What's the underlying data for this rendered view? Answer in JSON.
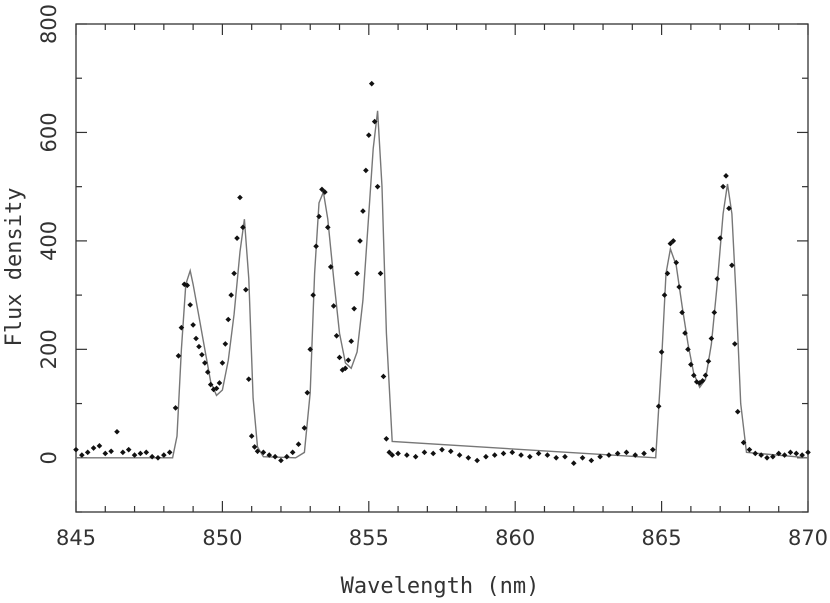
{
  "chart_data": {
    "type": "scatter",
    "title": "",
    "xlabel": "Wavelength (nm)",
    "ylabel": "Flux density",
    "xlim": [
      845,
      870
    ],
    "ylim": [
      -100,
      800
    ],
    "xticks": [
      845,
      850,
      855,
      860,
      865,
      870
    ],
    "yticks": [
      0,
      200,
      400,
      600,
      800
    ],
    "grid": false,
    "legend": "none",
    "colors": {
      "points": "#111111",
      "model": "#777777",
      "axes": "#333333"
    },
    "series": [
      {
        "kind": "points",
        "x": [
          845.0,
          845.2,
          845.4,
          845.6,
          845.8,
          846.0,
          846.2,
          846.4,
          846.6,
          846.8,
          847.0,
          847.2,
          847.4,
          847.6,
          847.8,
          848.0,
          848.2,
          848.4,
          848.5,
          848.6,
          848.7,
          848.8,
          848.9,
          849.0,
          849.1,
          849.2,
          849.3,
          849.4,
          849.5,
          849.6,
          849.7,
          849.8,
          849.9,
          850.0,
          850.1,
          850.2,
          850.3,
          850.4,
          850.5,
          850.6,
          850.7,
          850.8,
          850.9,
          851.0,
          851.1,
          851.2,
          851.4,
          851.6,
          851.8,
          852.0,
          852.2,
          852.4,
          852.6,
          852.8,
          852.9,
          853.0,
          853.1,
          853.2,
          853.3,
          853.4,
          853.5,
          853.6,
          853.7,
          853.8,
          853.9,
          854.0,
          854.1,
          854.2,
          854.3,
          854.4,
          854.5,
          854.6,
          854.7,
          854.8,
          854.9,
          855.0,
          855.1,
          855.2,
          855.3,
          855.4,
          855.5,
          855.6,
          855.7,
          855.8,
          856.0,
          856.3,
          856.6,
          856.9,
          857.2,
          857.5,
          857.8,
          858.1,
          858.4,
          858.7,
          859.0,
          859.3,
          859.6,
          859.9,
          860.2,
          860.5,
          860.8,
          861.1,
          861.4,
          861.7,
          862.0,
          862.3,
          862.6,
          862.9,
          863.2,
          863.5,
          863.8,
          864.1,
          864.4,
          864.7,
          864.9,
          865.0,
          865.1,
          865.2,
          865.3,
          865.4,
          865.5,
          865.6,
          865.7,
          865.8,
          865.9,
          866.0,
          866.1,
          866.2,
          866.3,
          866.4,
          866.5,
          866.6,
          866.7,
          866.8,
          866.9,
          867.0,
          867.1,
          867.2,
          867.3,
          867.4,
          867.5,
          867.6,
          867.8,
          868.0,
          868.2,
          868.4,
          868.6,
          868.8,
          869.0,
          869.2,
          869.4,
          869.6,
          869.8,
          870.0
        ],
        "y": [
          15,
          5,
          10,
          18,
          22,
          8,
          12,
          48,
          10,
          15,
          5,
          8,
          10,
          2,
          0,
          5,
          10,
          92,
          188,
          240,
          320,
          318,
          282,
          245,
          220,
          205,
          190,
          175,
          158,
          135,
          126,
          128,
          138,
          175,
          210,
          255,
          300,
          340,
          405,
          480,
          425,
          310,
          145,
          40,
          20,
          12,
          10,
          5,
          2,
          -5,
          2,
          10,
          25,
          55,
          120,
          200,
          300,
          390,
          445,
          495,
          490,
          425,
          352,
          280,
          225,
          185,
          162,
          165,
          180,
          215,
          275,
          340,
          400,
          455,
          530,
          595,
          690,
          620,
          500,
          340,
          150,
          35,
          10,
          5,
          8,
          5,
          2,
          10,
          8,
          15,
          12,
          5,
          0,
          -5,
          2,
          5,
          8,
          10,
          5,
          2,
          8,
          5,
          0,
          2,
          -10,
          0,
          -5,
          2,
          5,
          8,
          10,
          5,
          8,
          15,
          95,
          195,
          300,
          340,
          395,
          400,
          360,
          315,
          268,
          230,
          200,
          172,
          152,
          140,
          138,
          142,
          152,
          178,
          220,
          268,
          330,
          405,
          500,
          520,
          460,
          355,
          210,
          85,
          28,
          15,
          8,
          5,
          0,
          2,
          8,
          5,
          10,
          8,
          5,
          10
        ]
      },
      {
        "kind": "model-line",
        "x": [
          845.0,
          848.3,
          848.45,
          848.6,
          848.75,
          848.9,
          849.0,
          849.2,
          849.4,
          849.6,
          849.8,
          850.0,
          850.2,
          850.4,
          850.6,
          850.75,
          850.9,
          851.05,
          851.2,
          851.4,
          852.5,
          852.8,
          853.0,
          853.15,
          853.3,
          853.45,
          853.6,
          853.8,
          854.0,
          854.2,
          854.4,
          854.6,
          854.8,
          855.0,
          855.15,
          855.3,
          855.45,
          855.6,
          855.8,
          864.8,
          865.0,
          865.15,
          865.3,
          865.5,
          865.7,
          865.9,
          866.1,
          866.3,
          866.5,
          866.7,
          866.9,
          867.1,
          867.25,
          867.4,
          867.55,
          867.7,
          867.9,
          870.0
        ],
        "y": [
          0,
          0,
          40,
          200,
          320,
          345,
          320,
          260,
          200,
          140,
          115,
          125,
          180,
          265,
          380,
          440,
          330,
          110,
          20,
          2,
          0,
          10,
          120,
          340,
          470,
          490,
          440,
          330,
          230,
          175,
          165,
          195,
          290,
          450,
          570,
          640,
          500,
          230,
          30,
          0,
          180,
          340,
          385,
          355,
          280,
          210,
          155,
          130,
          145,
          210,
          320,
          450,
          505,
          450,
          290,
          100,
          10,
          0
        ]
      }
    ]
  }
}
